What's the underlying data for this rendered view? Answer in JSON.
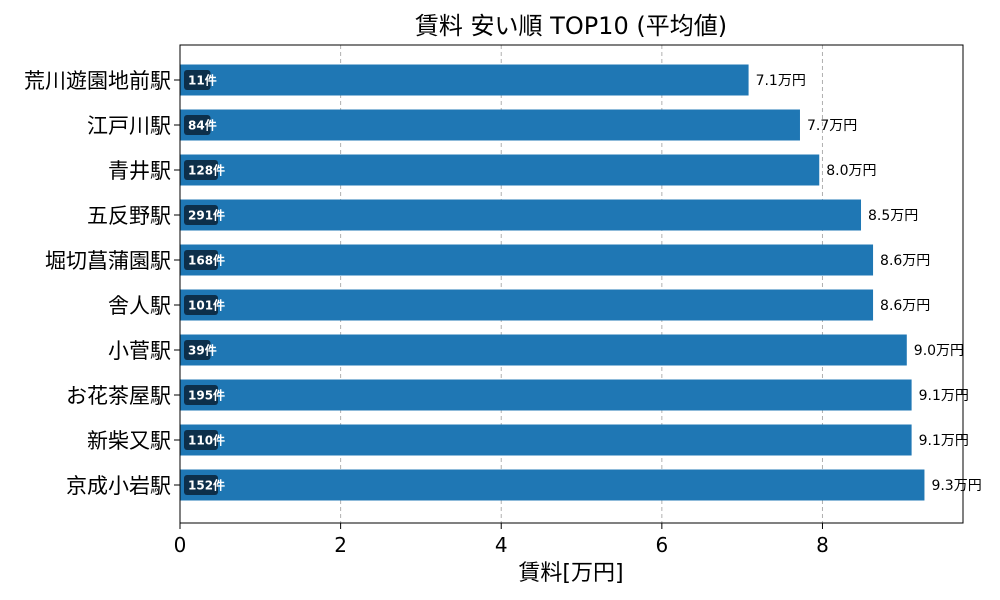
{
  "chart_data": {
    "type": "bar",
    "orientation": "horizontal",
    "title": "賃料 安い順 TOP10 (平均値)",
    "xlabel": "賃料[万円]",
    "ylabel": "",
    "xlim": [
      0,
      9.75
    ],
    "xticks": [
      0,
      2,
      4,
      6,
      8
    ],
    "grid": "x-dashed",
    "bar_color": "#1f77b4",
    "badge_color": "#0d2f4a",
    "value_suffix": "万円",
    "count_suffix": "件",
    "categories": [
      "荒川遊園地前駅",
      "江戸川駅",
      "青井駅",
      "五反野駅",
      "堀切菖蒲園駅",
      "舎人駅",
      "小菅駅",
      "お花茶屋駅",
      "新柴又駅",
      "京成小岩駅"
    ],
    "values": [
      7.1,
      7.7,
      8.0,
      8.5,
      8.6,
      8.6,
      9.0,
      9.1,
      9.1,
      9.3
    ],
    "values_exact": [
      7.08,
      7.72,
      7.96,
      8.48,
      8.63,
      8.63,
      9.05,
      9.11,
      9.11,
      9.27
    ],
    "value_labels": [
      "7.1万円",
      "7.7万円",
      "8.0万円",
      "8.5万円",
      "8.6万円",
      "8.6万円",
      "9.0万円",
      "9.1万円",
      "9.1万円",
      "9.3万円"
    ],
    "counts": [
      11,
      84,
      128,
      291,
      168,
      101,
      39,
      195,
      110,
      152
    ],
    "count_labels": [
      "11件",
      "84件",
      "128件",
      "291件",
      "168件",
      "101件",
      "39件",
      "195件",
      "110件",
      "152件"
    ]
  }
}
